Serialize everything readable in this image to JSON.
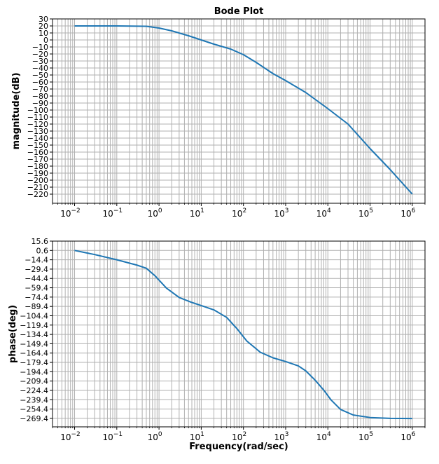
{
  "chart_data": [
    {
      "type": "line",
      "title": "Bode Plot",
      "xlabel": "",
      "ylabel": "magnitude(dB)",
      "xscale": "log",
      "xlim": [
        0.003,
        2000000
      ],
      "ylim": [
        -233,
        30
      ],
      "yticks": [
        30,
        20,
        10,
        0,
        -10,
        -20,
        -30,
        -40,
        -50,
        -60,
        -70,
        -80,
        -90,
        -100,
        -110,
        -120,
        -130,
        -140,
        -150,
        -160,
        -170,
        -180,
        -190,
        -200,
        -210,
        -220
      ],
      "ytick_labels": [
        "30",
        "20",
        "10",
        "0",
        "−10",
        "−20",
        "−30",
        "−40",
        "−50",
        "−60",
        "−70",
        "−80",
        "−90",
        "−100",
        "−110",
        "−120",
        "−130",
        "−140",
        "−150",
        "−160",
        "−170",
        "−180",
        "−190",
        "−200",
        "−210",
        "−220"
      ],
      "xtick_labels": [
        {
          "base": "10",
          "exp": "−2",
          "value": 0.01
        },
        {
          "base": "10",
          "exp": "−1",
          "value": 0.1
        },
        {
          "base": "10",
          "exp": "0",
          "value": 1
        },
        {
          "base": "10",
          "exp": "1",
          "value": 10
        },
        {
          "base": "10",
          "exp": "2",
          "value": 100
        },
        {
          "base": "10",
          "exp": "3",
          "value": 1000
        },
        {
          "base": "10",
          "exp": "4",
          "value": 10000
        },
        {
          "base": "10",
          "exp": "5",
          "value": 100000
        },
        {
          "base": "10",
          "exp": "6",
          "value": 1000000
        }
      ],
      "grid": true,
      "series": [
        {
          "name": "magnitude",
          "color": "#1f77b4",
          "x": [
            0.01,
            0.1,
            0.5,
            1,
            2,
            5,
            10,
            20,
            50,
            100,
            200,
            500,
            1000,
            3000,
            10000,
            30000,
            100000,
            300000,
            1000000
          ],
          "y": [
            20,
            20,
            19.5,
            17,
            13,
            6,
            0,
            -6,
            -13,
            -21,
            -32,
            -48,
            -58,
            -75,
            -98,
            -120,
            -155,
            -185,
            -220
          ]
        }
      ]
    },
    {
      "type": "line",
      "title": "",
      "xlabel": "Frequency(rad/sec)",
      "ylabel": "phase(deg)",
      "xscale": "log",
      "xlim": [
        0.003,
        2000000
      ],
      "ylim": [
        -283,
        15.6
      ],
      "yticks": [
        15.6,
        0.6,
        -14.4,
        -29.4,
        -44.4,
        -59.4,
        -74.4,
        -89.4,
        -104.4,
        -119.4,
        -134.4,
        -149.4,
        -164.4,
        -179.4,
        -194.4,
        -209.4,
        -224.4,
        -239.4,
        -254.4,
        -269.4
      ],
      "ytick_labels": [
        "15.6",
        "0.6",
        "−14.4",
        "−29.4",
        "−44.4",
        "−59.4",
        "−74.4",
        "−89.4",
        "−104.4",
        "−119.4",
        "−134.4",
        "−149.4",
        "−164.4",
        "−179.4",
        "−194.4",
        "−209.4",
        "−224.4",
        "−239.4",
        "−254.4",
        "−269.4"
      ],
      "xtick_labels": [
        {
          "base": "10",
          "exp": "−2",
          "value": 0.01
        },
        {
          "base": "10",
          "exp": "−1",
          "value": 0.1
        },
        {
          "base": "10",
          "exp": "0",
          "value": 1
        },
        {
          "base": "10",
          "exp": "1",
          "value": 10
        },
        {
          "base": "10",
          "exp": "2",
          "value": 100
        },
        {
          "base": "10",
          "exp": "3",
          "value": 1000
        },
        {
          "base": "10",
          "exp": "4",
          "value": 10000
        },
        {
          "base": "10",
          "exp": "5",
          "value": 100000
        },
        {
          "base": "10",
          "exp": "6",
          "value": 1000000
        }
      ],
      "grid": true,
      "series": [
        {
          "name": "phase",
          "color": "#1f77b4",
          "x": [
            0.01,
            0.03,
            0.1,
            0.3,
            0.5,
            0.8,
            1.5,
            3,
            6,
            10,
            20,
            40,
            70,
            120,
            250,
            500,
            1000,
            2000,
            3000,
            5000,
            8000,
            12000,
            20000,
            40000,
            100000,
            300000,
            1000000
          ],
          "y": [
            0.6,
            -6,
            -14.4,
            -23,
            -28,
            -40,
            -60,
            -75,
            -83,
            -88,
            -95,
            -107,
            -125,
            -145,
            -163,
            -172,
            -178,
            -185,
            -193,
            -208,
            -224,
            -240,
            -255,
            -264,
            -268,
            -269.4,
            -269.6
          ]
        }
      ]
    }
  ]
}
